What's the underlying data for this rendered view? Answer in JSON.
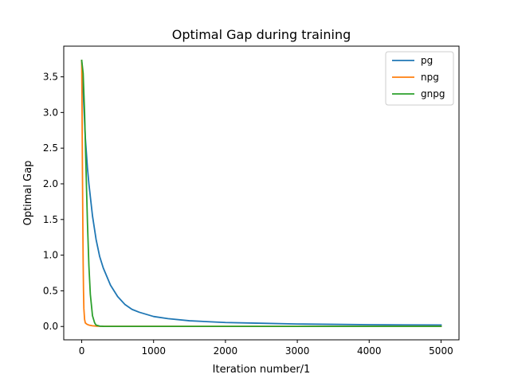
{
  "chart_data": {
    "type": "line",
    "title": "Optimal Gap during training",
    "xlabel": "Iteration number/1",
    "ylabel": "Optimal Gap",
    "xlim": [
      -250,
      5250
    ],
    "ylim": [
      -0.187,
      3.93
    ],
    "xticks": [
      0,
      1000,
      2000,
      3000,
      4000,
      5000
    ],
    "yticks": [
      0.0,
      0.5,
      1.0,
      1.5,
      2.0,
      2.5,
      3.0,
      3.5
    ],
    "ytick_labels": [
      "0.0",
      "0.5",
      "1.0",
      "1.5",
      "2.0",
      "2.5",
      "3.0",
      "3.5"
    ],
    "grid": false,
    "legend_position": "top-right",
    "series": [
      {
        "name": "pg",
        "color": "#1f77b4",
        "x": [
          0,
          20,
          50,
          80,
          100,
          150,
          200,
          250,
          300,
          400,
          500,
          600,
          700,
          800,
          1000,
          1200,
          1500,
          2000,
          2500,
          3000,
          3500,
          4000,
          4500,
          5000
        ],
        "y": [
          3.73,
          3.3,
          2.65,
          2.22,
          2.0,
          1.55,
          1.22,
          0.98,
          0.82,
          0.58,
          0.42,
          0.31,
          0.24,
          0.2,
          0.14,
          0.11,
          0.08,
          0.056,
          0.045,
          0.035,
          0.03,
          0.025,
          0.022,
          0.02
        ]
      },
      {
        "name": "npg",
        "color": "#ff7f0e",
        "x": [
          0,
          5,
          10,
          15,
          20,
          25,
          30,
          40,
          50,
          75,
          100,
          150,
          200,
          300,
          500,
          1000,
          2000,
          3000,
          4000,
          5000
        ],
        "y": [
          3.73,
          3.0,
          2.2,
          1.5,
          0.9,
          0.5,
          0.25,
          0.1,
          0.05,
          0.03,
          0.02,
          0.01,
          0.005,
          0.003,
          0.002,
          0.002,
          0.002,
          0.002,
          0.002,
          0.002
        ]
      },
      {
        "name": "gnpg",
        "color": "#2ca02c",
        "x": [
          0,
          20,
          40,
          60,
          80,
          100,
          120,
          150,
          180,
          200,
          250,
          300,
          400,
          600,
          1000,
          2000,
          3000,
          4000,
          5000
        ],
        "y": [
          3.73,
          3.55,
          3.0,
          2.2,
          1.45,
          0.85,
          0.45,
          0.15,
          0.05,
          0.02,
          0.005,
          0.002,
          0.001,
          0.001,
          0.001,
          0.001,
          0.001,
          0.001,
          0.001
        ]
      }
    ]
  }
}
